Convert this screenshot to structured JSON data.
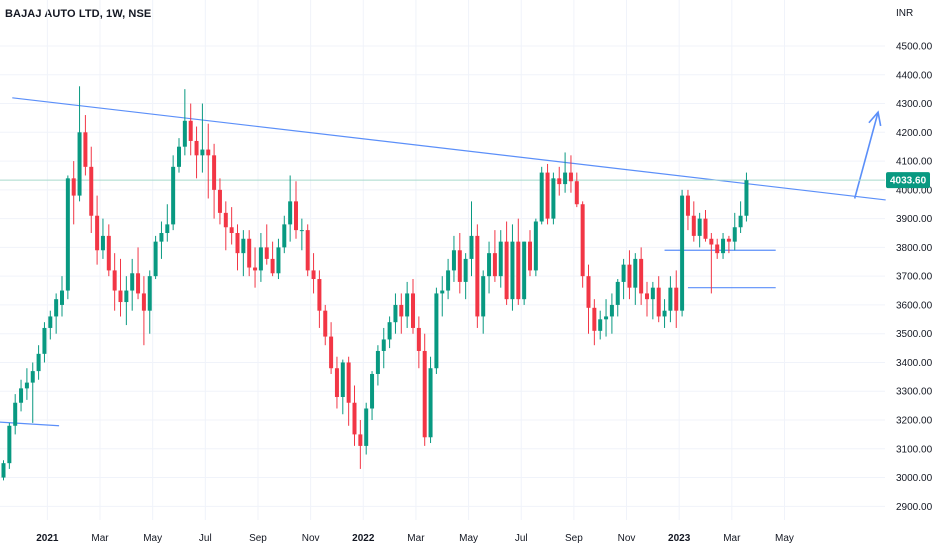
{
  "header": {
    "title": "BAJAJ AUTO LTD, 1W, NSE",
    "currency": "INR"
  },
  "colors": {
    "up": "#089981",
    "down": "#f23645",
    "grid": "#f0f3fa",
    "trendline": "#5b8ff9",
    "price_line": "#a7d9cc",
    "price_badge": "#089981"
  },
  "chart_data": {
    "type": "candlestick",
    "title": "BAJAJ AUTO LTD, 1W, NSE",
    "ylabel": "INR",
    "ylim": [
      2850,
      4600
    ],
    "y_ticks": [
      "4500.00",
      "4400.00",
      "4300.00",
      "4200.00",
      "4100.00",
      "4000.00",
      "3900.00",
      "3800.00",
      "3700.00",
      "3600.00",
      "3500.00",
      "3400.00",
      "3300.00",
      "3200.00",
      "3100.00",
      "3000.00",
      "2900.00"
    ],
    "x_ticks": [
      {
        "label": "2021",
        "bold": true,
        "week": 7.5
      },
      {
        "label": "Mar",
        "bold": false,
        "week": 16.5
      },
      {
        "label": "May",
        "bold": false,
        "week": 25.5
      },
      {
        "label": "Jul",
        "bold": false,
        "week": 34.5
      },
      {
        "label": "Sep",
        "bold": false,
        "week": 43.5
      },
      {
        "label": "Nov",
        "bold": false,
        "week": 52.5
      },
      {
        "label": "2022",
        "bold": true,
        "week": 61.5
      },
      {
        "label": "Mar",
        "bold": false,
        "week": 70.5
      },
      {
        "label": "May",
        "bold": false,
        "week": 79.5
      },
      {
        "label": "Jul",
        "bold": false,
        "week": 88.5
      },
      {
        "label": "Sep",
        "bold": false,
        "week": 97.5
      },
      {
        "label": "Nov",
        "bold": false,
        "week": 106.5
      },
      {
        "label": "2023",
        "bold": true,
        "week": 115.5
      },
      {
        "label": "Mar",
        "bold": false,
        "week": 124.5
      },
      {
        "label": "May",
        "bold": false,
        "week": 133.5
      }
    ],
    "last_price": 4033.6,
    "last_price_label": "4033.60",
    "candles": [
      [
        3000,
        3060,
        2990,
        3050
      ],
      [
        3050,
        3190,
        3030,
        3180
      ],
      [
        3180,
        3290,
        3150,
        3260
      ],
      [
        3260,
        3340,
        3230,
        3310
      ],
      [
        3310,
        3380,
        3270,
        3330
      ],
      [
        3330,
        3400,
        3190,
        3370
      ],
      [
        3370,
        3460,
        3340,
        3430
      ],
      [
        3430,
        3540,
        3400,
        3520
      ],
      [
        3520,
        3580,
        3480,
        3560
      ],
      [
        3560,
        3640,
        3500,
        3620
      ],
      [
        3600,
        3700,
        3560,
        3650
      ],
      [
        3650,
        4050,
        3620,
        4040
      ],
      [
        4040,
        4100,
        3880,
        3980
      ],
      [
        3980,
        4360,
        3960,
        4200
      ],
      [
        4200,
        4260,
        4050,
        4080
      ],
      [
        4080,
        4150,
        3850,
        3910
      ],
      [
        3910,
        3980,
        3740,
        3790
      ],
      [
        3790,
        3900,
        3760,
        3840
      ],
      [
        3840,
        3880,
        3700,
        3720
      ],
      [
        3720,
        3780,
        3580,
        3650
      ],
      [
        3650,
        3760,
        3560,
        3610
      ],
      [
        3610,
        3700,
        3530,
        3650
      ],
      [
        3650,
        3760,
        3580,
        3710
      ],
      [
        3710,
        3800,
        3620,
        3640
      ],
      [
        3640,
        3700,
        3460,
        3580
      ],
      [
        3580,
        3720,
        3500,
        3700
      ],
      [
        3700,
        3840,
        3690,
        3820
      ],
      [
        3820,
        3890,
        3760,
        3850
      ],
      [
        3850,
        3950,
        3820,
        3880
      ],
      [
        3880,
        4120,
        3860,
        4080
      ],
      [
        4080,
        4180,
        4060,
        4150
      ],
      [
        4150,
        4350,
        4120,
        4240
      ],
      [
        4240,
        4300,
        4120,
        4170
      ],
      [
        4170,
        4220,
        4040,
        4120
      ],
      [
        4120,
        4300,
        4060,
        4140
      ],
      [
        4140,
        4230,
        3970,
        4120
      ],
      [
        4120,
        4160,
        3900,
        4000
      ],
      [
        4000,
        4040,
        3880,
        3920
      ],
      [
        3920,
        3960,
        3790,
        3870
      ],
      [
        3870,
        3940,
        3810,
        3850
      ],
      [
        3850,
        3880,
        3720,
        3780
      ],
      [
        3780,
        3860,
        3700,
        3830
      ],
      [
        3830,
        3860,
        3700,
        3730
      ],
      [
        3730,
        3800,
        3660,
        3720
      ],
      [
        3720,
        3850,
        3680,
        3800
      ],
      [
        3800,
        3880,
        3740,
        3760
      ],
      [
        3760,
        3820,
        3700,
        3710
      ],
      [
        3710,
        3830,
        3690,
        3800
      ],
      [
        3800,
        3910,
        3780,
        3880
      ],
      [
        3880,
        4050,
        3820,
        3960
      ],
      [
        3960,
        4030,
        3830,
        3860
      ],
      [
        3860,
        3900,
        3790,
        3860
      ],
      [
        3860,
        3880,
        3700,
        3720
      ],
      [
        3720,
        3780,
        3640,
        3690
      ],
      [
        3690,
        3720,
        3520,
        3580
      ],
      [
        3580,
        3600,
        3460,
        3490
      ],
      [
        3490,
        3540,
        3360,
        3380
      ],
      [
        3380,
        3420,
        3240,
        3280
      ],
      [
        3280,
        3410,
        3220,
        3400
      ],
      [
        3400,
        3420,
        3180,
        3260
      ],
      [
        3260,
        3320,
        3110,
        3150
      ],
      [
        3150,
        3200,
        3030,
        3110
      ],
      [
        3110,
        3260,
        3080,
        3240
      ],
      [
        3240,
        3370,
        3200,
        3360
      ],
      [
        3360,
        3460,
        3320,
        3440
      ],
      [
        3440,
        3520,
        3380,
        3480
      ],
      [
        3480,
        3560,
        3450,
        3540
      ],
      [
        3540,
        3640,
        3500,
        3600
      ],
      [
        3600,
        3640,
        3500,
        3560
      ],
      [
        3560,
        3680,
        3520,
        3640
      ],
      [
        3640,
        3690,
        3500,
        3520
      ],
      [
        3520,
        3560,
        3380,
        3440
      ],
      [
        3440,
        3500,
        3110,
        3140
      ],
      [
        3140,
        3420,
        3120,
        3380
      ],
      [
        3380,
        3660,
        3360,
        3640
      ],
      [
        3640,
        3700,
        3560,
        3650
      ],
      [
        3650,
        3760,
        3620,
        3720
      ],
      [
        3720,
        3840,
        3680,
        3790
      ],
      [
        3790,
        3850,
        3640,
        3680
      ],
      [
        3680,
        3780,
        3620,
        3760
      ],
      [
        3760,
        3960,
        3700,
        3840
      ],
      [
        3840,
        3880,
        3520,
        3560
      ],
      [
        3560,
        3720,
        3500,
        3700
      ],
      [
        3700,
        3820,
        3640,
        3780
      ],
      [
        3780,
        3860,
        3680,
        3700
      ],
      [
        3700,
        3860,
        3660,
        3820
      ],
      [
        3820,
        3890,
        3600,
        3620
      ],
      [
        3620,
        3880,
        3580,
        3820
      ],
      [
        3820,
        3900,
        3600,
        3620
      ],
      [
        3620,
        3820,
        3600,
        3820
      ],
      [
        3820,
        3860,
        3700,
        3720
      ],
      [
        3720,
        3900,
        3700,
        3890
      ],
      [
        3890,
        4080,
        3880,
        4060
      ],
      [
        4060,
        4090,
        3880,
        3900
      ],
      [
        3900,
        4060,
        3880,
        4040
      ],
      [
        4040,
        4080,
        3980,
        4020
      ],
      [
        4020,
        4130,
        3990,
        4060
      ],
      [
        4060,
        4120,
        3990,
        4030
      ],
      [
        4030,
        4060,
        3940,
        3950
      ],
      [
        3950,
        3960,
        3660,
        3700
      ],
      [
        3700,
        3740,
        3500,
        3590
      ],
      [
        3590,
        3620,
        3460,
        3510
      ],
      [
        3510,
        3580,
        3480,
        3550
      ],
      [
        3550,
        3620,
        3490,
        3560
      ],
      [
        3560,
        3640,
        3500,
        3600
      ],
      [
        3600,
        3690,
        3560,
        3680
      ],
      [
        3680,
        3760,
        3620,
        3740
      ],
      [
        3740,
        3790,
        3620,
        3660
      ],
      [
        3660,
        3780,
        3600,
        3760
      ],
      [
        3760,
        3800,
        3600,
        3640
      ],
      [
        3640,
        3680,
        3560,
        3620
      ],
      [
        3620,
        3680,
        3550,
        3660
      ],
      [
        3660,
        3700,
        3540,
        3560
      ],
      [
        3560,
        3620,
        3520,
        3580
      ],
      [
        3580,
        3700,
        3540,
        3660
      ],
      [
        3660,
        3720,
        3520,
        3580
      ],
      [
        3580,
        4000,
        3560,
        3980
      ],
      [
        3980,
        4000,
        3860,
        3910
      ],
      [
        3910,
        3960,
        3820,
        3840
      ],
      [
        3840,
        3920,
        3800,
        3900
      ],
      [
        3900,
        3930,
        3820,
        3830
      ],
      [
        3830,
        3850,
        3640,
        3810
      ],
      [
        3810,
        3830,
        3760,
        3780
      ],
      [
        3780,
        3850,
        3760,
        3830
      ],
      [
        3830,
        3840,
        3780,
        3820
      ],
      [
        3820,
        3920,
        3790,
        3870
      ],
      [
        3870,
        3960,
        3850,
        3910
      ],
      [
        3910,
        4060,
        3890,
        4033.6
      ]
    ],
    "annotations": [
      {
        "type": "trendline",
        "from": [
          1.5,
          4320
        ],
        "to": [
          150.8,
          3965
        ]
      },
      {
        "type": "trendline",
        "from": [
          -6.5,
          3200
        ],
        "to": [
          9.5,
          3180
        ]
      },
      {
        "type": "hline",
        "from": [
          113,
          3790
        ],
        "to": [
          132,
          3790
        ]
      },
      {
        "type": "hline",
        "from": [
          117,
          3660
        ],
        "to": [
          132,
          3660
        ]
      },
      {
        "type": "arrow",
        "points": [
          [
            145.5,
            3970
          ],
          [
            149.5,
            4270
          ]
        ]
      }
    ]
  }
}
